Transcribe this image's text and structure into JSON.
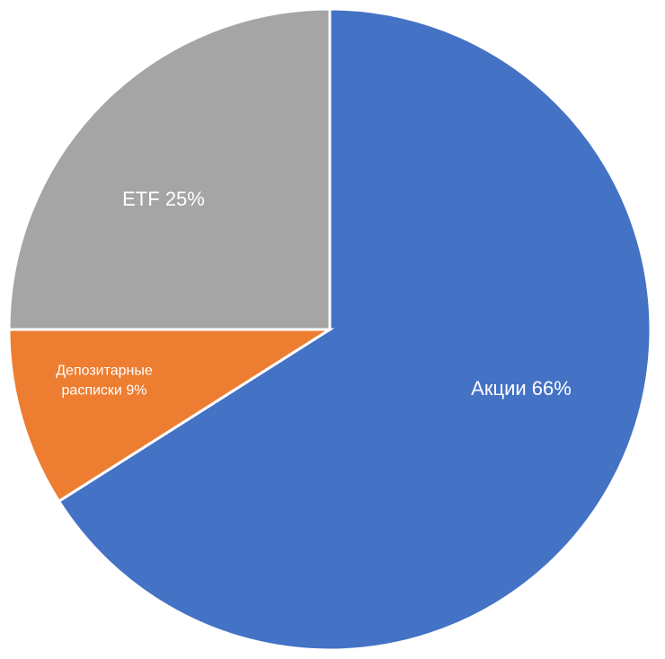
{
  "chart_data": {
    "type": "pie",
    "categories": [
      "Акции",
      "Депозитарные расписки",
      "ETF"
    ],
    "values": [
      66,
      9,
      25
    ],
    "value_labels": [
      "66%",
      "9%",
      "25%"
    ],
    "colors": [
      "#4472c4",
      "#ed7d31",
      "#a5a5a5"
    ]
  }
}
